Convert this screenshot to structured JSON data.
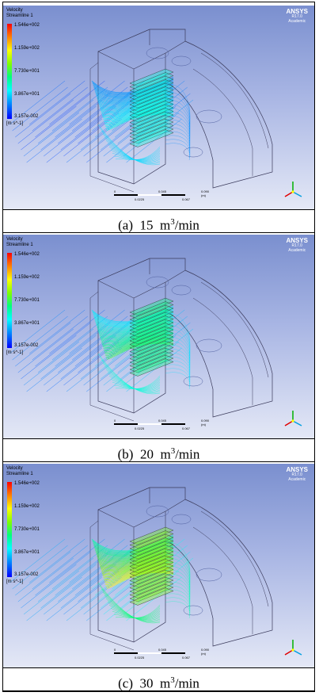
{
  "panels": [
    {
      "legend": {
        "line1": "Velocity",
        "line2": "Streamline 1",
        "ticks": [
          "1.546e+002",
          "1.159e+002",
          "7.730e+001",
          "3.867e+001",
          "3.157e-002"
        ],
        "unit": "[m s^-1]"
      },
      "brand": {
        "name": "ANSYS",
        "version": "R17.0",
        "edition": "Academic"
      },
      "scale": {
        "s0": "0",
        "s1": "0.045",
        "s2": "0.090 (m)",
        "s3": "0.0225",
        "s4": "0.067"
      },
      "caption": {
        "label": "(a)",
        "value": "15",
        "unit": "m",
        "exp": "3",
        "per": "/min"
      },
      "level": 0.35
    },
    {
      "legend": {
        "line1": "Velocity",
        "line2": "Streamline 1",
        "ticks": [
          "1.546e+002",
          "1.159e+002",
          "7.730e+001",
          "3.867e+001",
          "3.157e-002"
        ],
        "unit": "[m s^-1]"
      },
      "brand": {
        "name": "ANSYS",
        "version": "R17.0",
        "edition": "Academic"
      },
      "scale": {
        "s0": "0",
        "s1": "0.045",
        "s2": "0.090 (m)",
        "s3": "0.0225",
        "s4": "0.067"
      },
      "caption": {
        "label": "(b)",
        "value": "20",
        "unit": "m",
        "exp": "3",
        "per": "/min"
      },
      "level": 0.55
    },
    {
      "legend": {
        "line1": "Velocity",
        "line2": "Streamline 1",
        "ticks": [
          "1.546e+002",
          "1.159e+002",
          "7.730e+001",
          "3.867e+001",
          "3.157e-002"
        ],
        "unit": "[m s^-1]"
      },
      "brand": {
        "name": "ANSYS",
        "version": "R17.0",
        "edition": "Academic"
      },
      "scale": {
        "s0": "0",
        "s1": "0.045",
        "s2": "0.090 (m)",
        "s3": "0.0225",
        "s4": "0.067"
      },
      "caption": {
        "label": "(c)",
        "value": "30",
        "unit": "m",
        "exp": "3",
        "per": "/min"
      },
      "level": 0.8
    }
  ]
}
